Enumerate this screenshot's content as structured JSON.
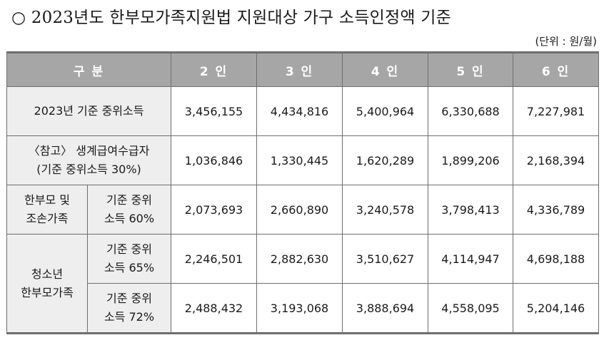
{
  "title": "○ 2023년도 한부모가족지원법 지원대상 가구 소득인정액 기준",
  "unit": "(단위 : 원/월)",
  "table": {
    "headers": [
      "구 분",
      "2 인",
      "3 인",
      "4 인",
      "5 인",
      "6 인"
    ],
    "rows": {
      "median": {
        "label": "2023년 기준 중위소득",
        "values": [
          "3,456,155",
          "4,434,816",
          "5,400,964",
          "6,330,688",
          "7,227,981"
        ]
      },
      "livelihood": {
        "label_line1": "〈참고〉 생계급여수급자",
        "label_line2": "(기준 중위소득 30%)",
        "values": [
          "1,036,846",
          "1,330,445",
          "1,620,289",
          "1,899,206",
          "2,168,394"
        ]
      },
      "single_parent": {
        "group_line1": "한부모 및",
        "group_line2": "조손가족",
        "sub_line1": "기준 중위",
        "sub_line2": "소득 60%",
        "values": [
          "2,073,693",
          "2,660,890",
          "3,240,578",
          "3,798,413",
          "4,336,789"
        ]
      },
      "youth_65": {
        "group_line1": "청소년",
        "group_line2": "한부모가족",
        "sub_line1": "기준 중위",
        "sub_line2": "소득 65%",
        "values": [
          "2,246,501",
          "2,882,630",
          "3,510,627",
          "4,114,947",
          "4,698,188"
        ]
      },
      "youth_72": {
        "sub_line1": "기준 중위",
        "sub_line2": "소득 72%",
        "values": [
          "2,488,432",
          "3,193,068",
          "3,888,694",
          "4,558,095",
          "5,204,146"
        ]
      }
    }
  }
}
